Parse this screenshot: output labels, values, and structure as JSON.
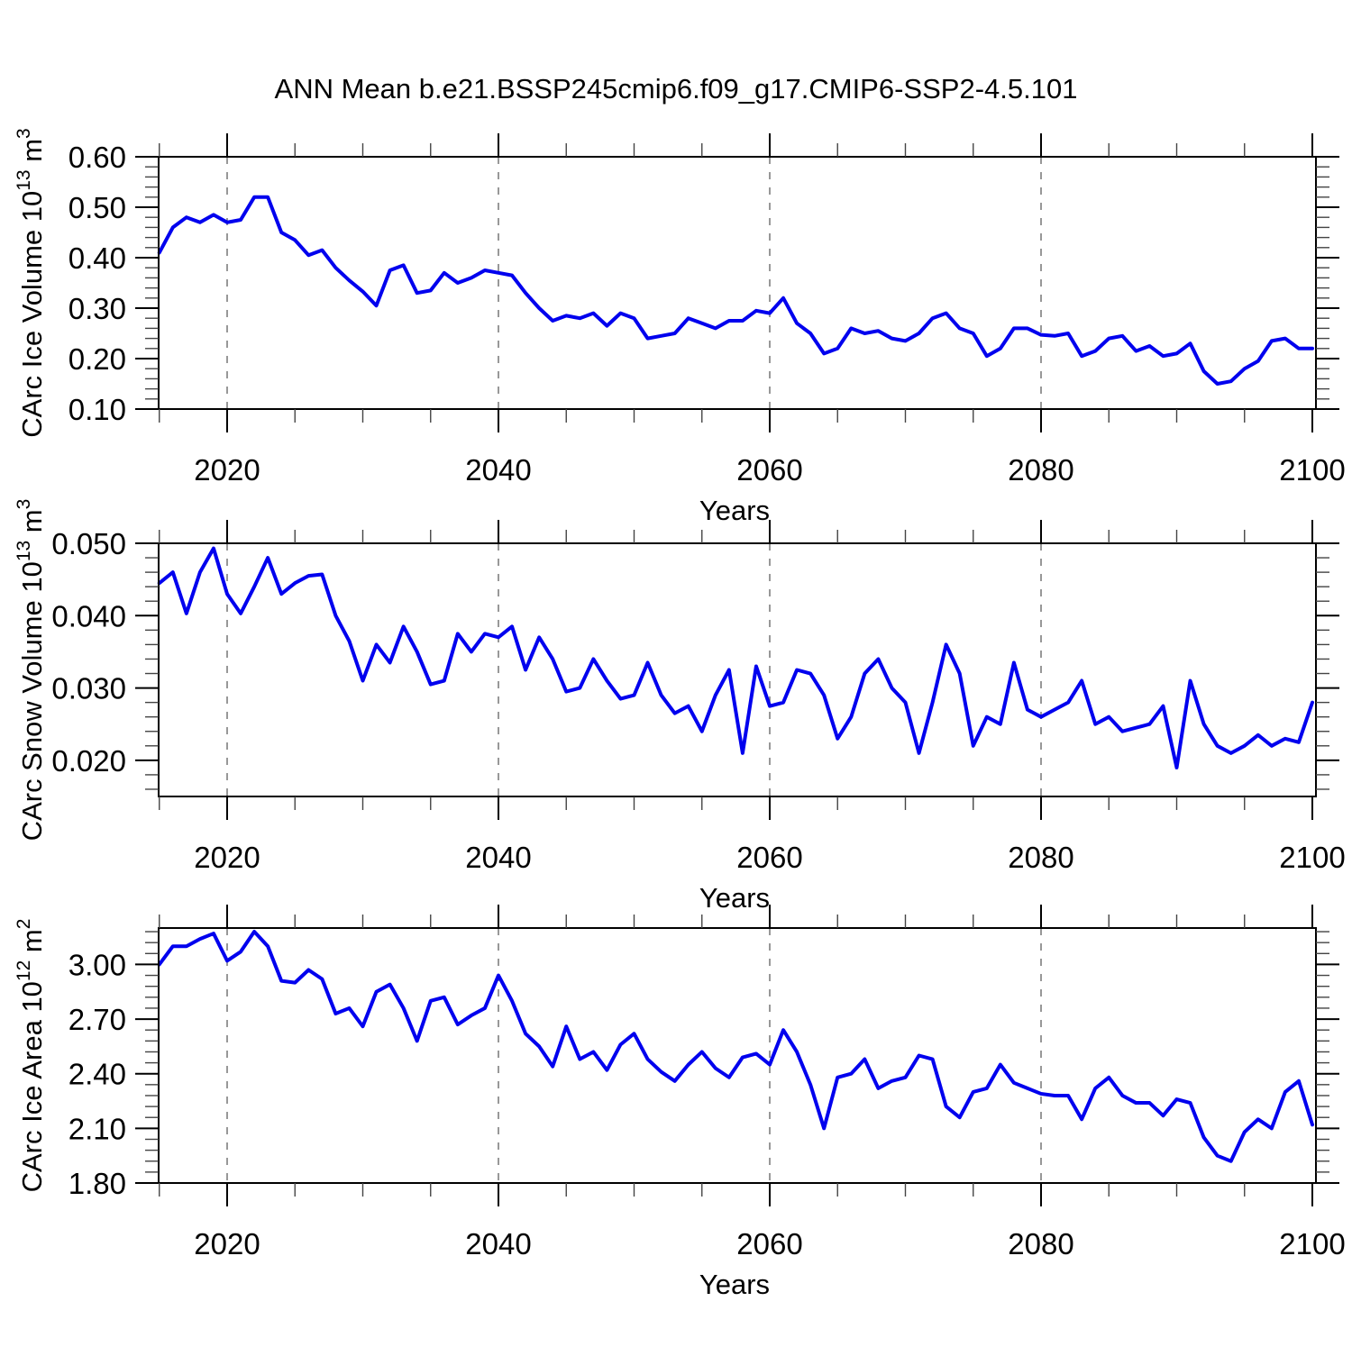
{
  "title": "ANN Mean b.e21.BSSP245cmip6.f09_g17.CMIP6-SSP2-4.5.101",
  "colors": {
    "line": "#0000EE",
    "axis": "#000000",
    "minor_tick": "#444444",
    "gridline": "#777777",
    "background": "#FFFFFF"
  },
  "x_axis": {
    "title": "Years",
    "major_ticks": [
      2020,
      2040,
      2060,
      2080,
      2100
    ],
    "minor_tick_step": 5,
    "gridline_years": [
      2020,
      2040,
      2060,
      2080
    ],
    "range": [
      2015,
      2100
    ]
  },
  "chart_data": [
    {
      "type": "line",
      "id": "ice-volume",
      "ylabel": "CArc Ice Volume 10¹³ m³",
      "ylabel_parts": [
        {
          "text": "CArc Ice Volume 10",
          "sup": false
        },
        {
          "text": "13",
          "sup": true
        },
        {
          "text": " m",
          "sup": false
        },
        {
          "text": "3",
          "sup": true
        }
      ],
      "xlabel": "Years",
      "ylim": [
        0.1,
        0.6
      ],
      "ytick_values": [
        0.1,
        0.2,
        0.3,
        0.4,
        0.5,
        0.6
      ],
      "ytick_labels": [
        "0.10",
        "0.20",
        "0.30",
        "0.40",
        "0.50",
        "0.60"
      ],
      "y_minor_step": 0.02,
      "x_start": 2015,
      "x_step": 1,
      "values": [
        0.41,
        0.46,
        0.48,
        0.47,
        0.485,
        0.47,
        0.475,
        0.52,
        0.52,
        0.45,
        0.435,
        0.405,
        0.415,
        0.38,
        0.355,
        0.333,
        0.305,
        0.375,
        0.385,
        0.33,
        0.335,
        0.37,
        0.35,
        0.36,
        0.375,
        0.37,
        0.365,
        0.33,
        0.3,
        0.275,
        0.285,
        0.28,
        0.29,
        0.265,
        0.29,
        0.28,
        0.24,
        0.245,
        0.25,
        0.28,
        0.27,
        0.26,
        0.275,
        0.275,
        0.295,
        0.29,
        0.32,
        0.27,
        0.25,
        0.21,
        0.22,
        0.26,
        0.25,
        0.255,
        0.24,
        0.235,
        0.25,
        0.28,
        0.29,
        0.26,
        0.25,
        0.205,
        0.22,
        0.26,
        0.26,
        0.247,
        0.245,
        0.25,
        0.205,
        0.215,
        0.24,
        0.245,
        0.215,
        0.225,
        0.205,
        0.21,
        0.23,
        0.175,
        0.15,
        0.155,
        0.18,
        0.195,
        0.235,
        0.24,
        0.22,
        0.22
      ]
    },
    {
      "type": "line",
      "id": "snow-volume",
      "ylabel": "CArc Snow Volume 10¹³ m³",
      "ylabel_parts": [
        {
          "text": "CArc Snow Volume 10",
          "sup": false
        },
        {
          "text": "13",
          "sup": true
        },
        {
          "text": " m",
          "sup": false
        },
        {
          "text": "3",
          "sup": true
        }
      ],
      "xlabel": "Years",
      "ylim": [
        0.015,
        0.05
      ],
      "ytick_values": [
        0.02,
        0.03,
        0.04,
        0.05
      ],
      "ytick_labels": [
        "0.020",
        "0.030",
        "0.040",
        "0.050"
      ],
      "y_minor_step": 0.002,
      "x_start": 2015,
      "x_step": 1,
      "values": [
        0.0445,
        0.046,
        0.0403,
        0.046,
        0.0493,
        0.043,
        0.0403,
        0.044,
        0.048,
        0.043,
        0.0445,
        0.0455,
        0.0457,
        0.04,
        0.0365,
        0.031,
        0.036,
        0.0335,
        0.0385,
        0.035,
        0.0305,
        0.031,
        0.0375,
        0.035,
        0.0375,
        0.037,
        0.0385,
        0.0325,
        0.037,
        0.034,
        0.0295,
        0.03,
        0.034,
        0.031,
        0.0285,
        0.029,
        0.0335,
        0.029,
        0.0265,
        0.0275,
        0.024,
        0.029,
        0.0325,
        0.021,
        0.033,
        0.0275,
        0.028,
        0.0325,
        0.032,
        0.029,
        0.023,
        0.026,
        0.032,
        0.034,
        0.03,
        0.028,
        0.021,
        0.028,
        0.036,
        0.032,
        0.022,
        0.026,
        0.025,
        0.0335,
        0.027,
        0.026,
        0.027,
        0.028,
        0.031,
        0.025,
        0.026,
        0.024,
        0.0245,
        0.025,
        0.0275,
        0.019,
        0.031,
        0.025,
        0.022,
        0.021,
        0.022,
        0.0235,
        0.022,
        0.023,
        0.0225,
        0.028
      ]
    },
    {
      "type": "line",
      "id": "ice-area",
      "ylabel": "CArc Ice Area 10¹² m²",
      "ylabel_parts": [
        {
          "text": "CArc Ice Area 10",
          "sup": false
        },
        {
          "text": "12",
          "sup": true
        },
        {
          "text": " m",
          "sup": false
        },
        {
          "text": "2",
          "sup": true
        }
      ],
      "xlabel": "Years",
      "ylim": [
        1.8,
        3.2
      ],
      "ytick_values": [
        1.8,
        2.1,
        2.4,
        2.7,
        3.0
      ],
      "ytick_labels": [
        "1.80",
        "2.10",
        "2.40",
        "2.70",
        "3.00"
      ],
      "y_minor_step": 0.06,
      "x_start": 2015,
      "x_step": 1,
      "values": [
        3.0,
        3.1,
        3.1,
        3.14,
        3.17,
        3.02,
        3.07,
        3.18,
        3.1,
        2.91,
        2.9,
        2.97,
        2.92,
        2.73,
        2.76,
        2.66,
        2.85,
        2.89,
        2.76,
        2.58,
        2.8,
        2.82,
        2.67,
        2.72,
        2.76,
        2.94,
        2.8,
        2.62,
        2.55,
        2.44,
        2.66,
        2.48,
        2.52,
        2.42,
        2.56,
        2.62,
        2.48,
        2.41,
        2.36,
        2.45,
        2.52,
        2.43,
        2.38,
        2.49,
        2.51,
        2.45,
        2.64,
        2.52,
        2.34,
        2.1,
        2.38,
        2.4,
        2.48,
        2.32,
        2.36,
        2.38,
        2.5,
        2.48,
        2.22,
        2.16,
        2.3,
        2.32,
        2.45,
        2.35,
        2.32,
        2.29,
        2.28,
        2.28,
        2.15,
        2.32,
        2.38,
        2.28,
        2.24,
        2.24,
        2.17,
        2.26,
        2.24,
        2.05,
        1.95,
        1.92,
        2.08,
        2.15,
        2.1,
        2.3,
        2.36,
        2.12
      ]
    }
  ]
}
